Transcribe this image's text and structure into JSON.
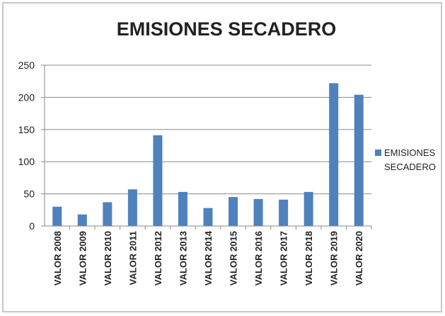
{
  "chart_data": {
    "type": "bar",
    "title": "EMISIONES SECADERO",
    "categories": [
      "VALOR 2008",
      "VALOR 2009",
      "VALOR 2010",
      "VALOR 2011",
      "VALOR 2012",
      "VALOR 2013",
      "VALOR 2014",
      "VALOR 2015",
      "VALOR 2016",
      "VALOR 2017",
      "VALOR 2018",
      "VALOR 2019",
      "VALOR 2020"
    ],
    "series": [
      {
        "name": "EMISIONES SECADERO",
        "color": "#4f81bd",
        "values": [
          30,
          18,
          37,
          57,
          141,
          53,
          28,
          45,
          42,
          41,
          53,
          222,
          204
        ]
      }
    ],
    "ylim": [
      0,
      250
    ],
    "yticks": [
      0,
      50,
      100,
      150,
      200,
      250
    ],
    "grid": true,
    "legend": "right"
  }
}
